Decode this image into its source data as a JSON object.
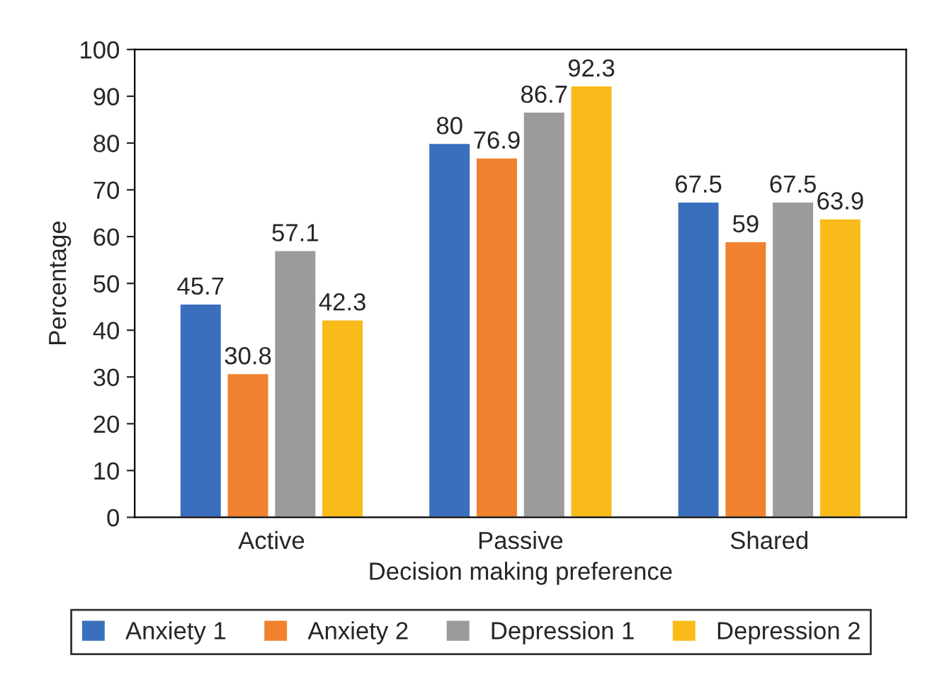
{
  "chart_data": {
    "type": "bar",
    "xlabel": "Decision making preference",
    "ylabel": "Percentage",
    "categories": [
      "Active",
      "Passive",
      "Shared"
    ],
    "series": [
      {
        "name": "Anxiety 1",
        "color": "#3a6fbd",
        "values": [
          45.7,
          80,
          67.5
        ]
      },
      {
        "name": "Anxiety 2",
        "color": "#f0812f",
        "values": [
          30.8,
          76.9,
          59
        ]
      },
      {
        "name": "Depression 1",
        "color": "#9b9b9b",
        "values": [
          57.1,
          86.7,
          67.5
        ]
      },
      {
        "name": "Depression 2",
        "color": "#f9bb1a",
        "values": [
          42.3,
          92.3,
          63.9
        ]
      }
    ],
    "ylim": [
      0,
      100
    ],
    "yticks": [
      0,
      10,
      20,
      30,
      40,
      50,
      60,
      70,
      80,
      90,
      100
    ],
    "data_labels": true,
    "legend": "bottom",
    "grid": false
  }
}
